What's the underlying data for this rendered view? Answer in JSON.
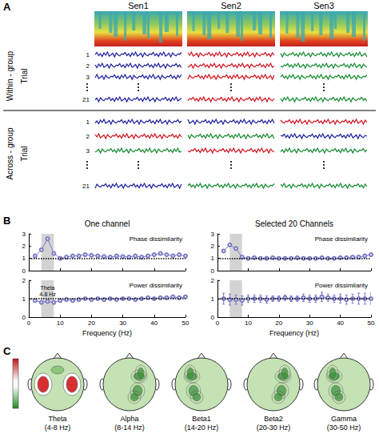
{
  "panel_a": {
    "letter": "A",
    "columns": [
      "Sen1",
      "Sen2",
      "Sen3"
    ],
    "trial_label": "Trial",
    "trials": [
      1,
      2,
      3,
      21
    ],
    "groups": [
      {
        "label": "Within - group",
        "colors": [
          [
            "#1c1c9c",
            "#d0101a",
            "#108a2a"
          ],
          [
            "#1c1c9c",
            "#d0101a",
            "#108a2a"
          ],
          [
            "#1c1c9c",
            "#d0101a",
            "#108a2a"
          ],
          [
            "#1c1c9c",
            "#d0101a",
            "#108a2a"
          ]
        ]
      },
      {
        "label": "Across - group",
        "colors": [
          [
            "#1c1c9c",
            "#1c1c9c",
            "#d0101a"
          ],
          [
            "#d0101a",
            "#108a2a",
            "#1c1c9c"
          ],
          [
            "#108a2a",
            "#d0101a",
            "#108a2a"
          ],
          [
            "#1c1c9c",
            "#108a2a",
            "#108a2a"
          ]
        ]
      }
    ]
  },
  "panel_b": {
    "letter": "B"
  },
  "chart_data": [
    {
      "type": "line",
      "title": "One channel",
      "tick_labels": "y",
      "x": [
        2,
        4,
        6,
        8,
        10,
        12,
        14,
        16,
        18,
        20,
        22,
        24,
        26,
        28,
        30,
        32,
        34,
        36,
        38,
        40,
        42,
        44,
        46,
        48,
        50
      ],
      "xlim": [
        0,
        50
      ],
      "xticks": [
        0,
        10,
        20,
        30,
        40,
        50
      ],
      "ylim": [
        0,
        3
      ],
      "yticks": [
        0,
        1,
        2,
        3
      ],
      "reference": 1,
      "band": [
        4,
        8
      ],
      "series": [
        {
          "name": "Phase dissimilarity",
          "color": "#7b7bc8",
          "marker": "circle",
          "values": [
            1.2,
            1.7,
            2.6,
            1.4,
            1.0,
            1.1,
            1.2,
            1.2,
            1.3,
            1.25,
            1.2,
            1.15,
            1.1,
            1.2,
            1.15,
            1.1,
            1.2,
            1.1,
            1.2,
            1.3,
            1.4,
            1.3,
            1.2,
            1.3,
            1.2
          ]
        }
      ]
    },
    {
      "type": "line",
      "title": "Selected 20 Channels",
      "tick_labels": "y",
      "x": [
        2,
        4,
        6,
        8,
        10,
        12,
        14,
        16,
        18,
        20,
        22,
        24,
        26,
        28,
        30,
        32,
        34,
        36,
        38,
        40,
        42,
        44,
        46,
        48,
        50
      ],
      "xlim": [
        0,
        50
      ],
      "xticks": [
        0,
        10,
        20,
        30,
        40,
        50
      ],
      "ylim": [
        0,
        3
      ],
      "yticks": [
        0,
        1,
        2,
        3
      ],
      "reference": 1,
      "band": [
        4,
        8
      ],
      "series": [
        {
          "name": "Phase dissimilarity",
          "color": "#7b7bc8",
          "marker": "circle",
          "values": [
            1.6,
            2.1,
            1.8,
            1.1,
            1.0,
            1.05,
            1.0,
            1.0,
            1.05,
            1.0,
            1.0,
            1.0,
            1.05,
            1.0,
            1.0,
            1.0,
            1.05,
            1.0,
            1.0,
            1.05,
            1.05,
            1.1,
            1.1,
            1.2,
            1.3
          ]
        }
      ]
    },
    {
      "type": "line",
      "xlabel": "Frequency (Hz)",
      "annotation": [
        "Theta",
        "4-8 Hz"
      ],
      "x": [
        2,
        4,
        6,
        8,
        10,
        12,
        14,
        16,
        18,
        20,
        22,
        24,
        26,
        28,
        30,
        32,
        34,
        36,
        38,
        40,
        42,
        44,
        46,
        48,
        50
      ],
      "xlim": [
        0,
        50
      ],
      "xticks": [
        0,
        10,
        20,
        30,
        40,
        50
      ],
      "ylim": [
        0,
        2
      ],
      "yticks": [
        0,
        1,
        2
      ],
      "reference": 1,
      "band": [
        4,
        8
      ],
      "series": [
        {
          "name": "Power dissimilarity",
          "color": "#7b7bc8",
          "marker": "circle",
          "values": [
            0.9,
            0.8,
            0.85,
            0.8,
            0.9,
            0.95,
            0.9,
            0.95,
            1.0,
            0.95,
            1.0,
            0.95,
            1.0,
            0.95,
            1.0,
            1.0,
            0.95,
            1.0,
            1.05,
            1.0,
            1.05,
            1.05,
            1.1,
            1.05,
            1.1
          ]
        }
      ]
    },
    {
      "type": "line",
      "xlabel": "Frequency (Hz)",
      "x": [
        2,
        4,
        6,
        8,
        10,
        12,
        14,
        16,
        18,
        20,
        22,
        24,
        26,
        28,
        30,
        32,
        34,
        36,
        38,
        40,
        42,
        44,
        46,
        48,
        50
      ],
      "xlim": [
        0,
        50
      ],
      "xticks": [
        0,
        10,
        20,
        30,
        40,
        50
      ],
      "ylim": [
        0,
        2
      ],
      "yticks": [
        0,
        1,
        2
      ],
      "reference": 1,
      "band": [
        4,
        8
      ],
      "series": [
        {
          "name": "Power dissimilarity",
          "color": "#7b7bc8",
          "marker": "circle",
          "values": [
            1.0,
            0.95,
            0.95,
            0.9,
            1.0,
            1.0,
            1.0,
            0.95,
            1.0,
            1.0,
            1.05,
            1.0,
            1.0,
            1.05,
            1.0,
            1.0,
            1.1,
            1.05,
            1.0,
            1.0,
            0.95,
            1.0,
            1.0,
            1.0,
            1.0
          ],
          "errors": [
            0.3,
            0.3,
            0.25,
            0.25,
            0.2,
            0.2,
            0.2,
            0.2,
            0.15,
            0.15,
            0.15,
            0.15,
            0.15,
            0.2,
            0.2,
            0.2,
            0.25,
            0.2,
            0.2,
            0.25,
            0.25,
            0.25,
            0.3,
            0.3,
            0.3
          ]
        }
      ]
    }
  ],
  "panel_c": {
    "letter": "C",
    "maps": [
      {
        "name": "Theta",
        "band": "(4-8 Hz)",
        "color": "#d83030"
      },
      {
        "name": "Alpha",
        "band": "(8-14 Hz)",
        "color": "#3a8f3a"
      },
      {
        "name": "Beta1",
        "band": "(14-20 Hz)",
        "color": "#3a8f3a"
      },
      {
        "name": "Beta2",
        "band": "(20-30 Hz)",
        "color": "#3a8f3a"
      },
      {
        "name": "Gamma",
        "band": "(30-50 Hz)",
        "color": "#3a8f3a"
      }
    ]
  }
}
